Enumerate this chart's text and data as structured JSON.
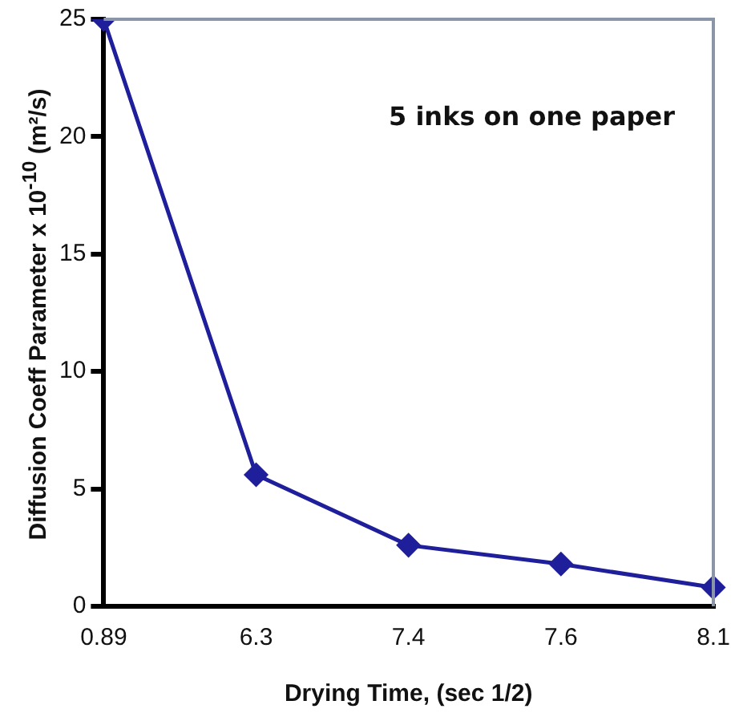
{
  "chart_data": {
    "type": "line",
    "xlabel": "Drying Time, (sec 1/2)",
    "ylabel": "Diffusion Coeff Parameter x 10$^{-10}$ (m²/s)",
    "annotations": [
      "5 inks on one paper"
    ],
    "categories": [
      "0.89",
      "6.3",
      "7.4",
      "7.6",
      "8.1"
    ],
    "series": [
      {
        "color": "#1f1f9c",
        "values": [
          25,
          5.6,
          2.6,
          1.8,
          0.8
        ]
      }
    ],
    "ylim": [
      0,
      25
    ],
    "yticks": [
      0,
      5,
      10,
      15,
      20,
      25
    ],
    "grid": false,
    "legend": false,
    "marker": "diamond",
    "line_style": "solid"
  }
}
